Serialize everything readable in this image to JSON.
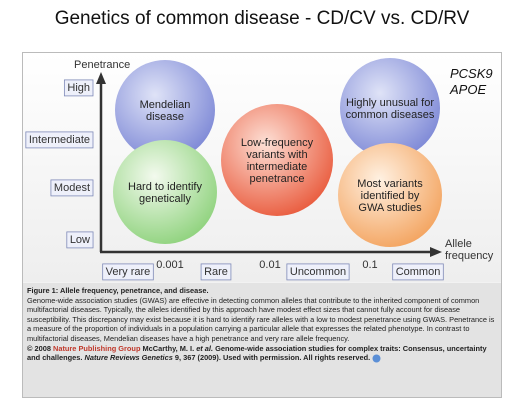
{
  "title": "Genetics of common disease - CD/CV vs. CD/RV",
  "y_axis": {
    "label": "Penetrance",
    "levels": [
      "High",
      "Intermediate",
      "Modest",
      "Low"
    ]
  },
  "x_axis": {
    "label": [
      "Allele",
      "frequency"
    ],
    "levels": [
      "Very rare",
      "Rare",
      "Uncommon",
      "Common"
    ],
    "thresholds": [
      "0.001",
      "0.01",
      "0.1"
    ]
  },
  "genes": [
    "PCSK9",
    "APOE"
  ],
  "regions": [
    {
      "lines": [
        "Mendelian",
        "disease"
      ]
    },
    {
      "lines": [
        "Hard to identify",
        "genetically"
      ]
    },
    {
      "lines": [
        "Low-frequency",
        "variants with",
        "intermediate",
        "penetrance"
      ]
    },
    {
      "lines": [
        "Highly unusual for",
        "common diseases"
      ]
    },
    {
      "lines": [
        "Most variants",
        "identified by",
        "GWA studies"
      ]
    }
  ],
  "caption": {
    "heading": "Figure 1: Allele frequency, penetrance, and disease.",
    "body": "Genome-wide association studies (GWAS) are effective in detecting common alleles that contribute to the inherited component of common multifactorial diseases. Typically, the alleles identified by this approach have modest effect sizes that cannot fully account for disease susceptibility. This discrepancy may exist because it is hard to identify rare alleles with a low to modest penetrance using GWAS. Penetrance is a measure of the proportion of individuals in a population carrying a particular allele that expresses the related phenotype. In contrast to multifactorial diseases, Mendelian diseases have a high penetrance and very rare allele frequency.",
    "credit": [
      "© 2008 ",
      "Nature Publishing Group",
      " McCarthy, M. I. ",
      "et al.",
      " Genome-wide association studies for complex traits: Consensus, uncertainty and challenges. ",
      "Nature Reviews Genetics",
      " 9, 367 (2009). Used with permission. All rights reserved."
    ]
  }
}
